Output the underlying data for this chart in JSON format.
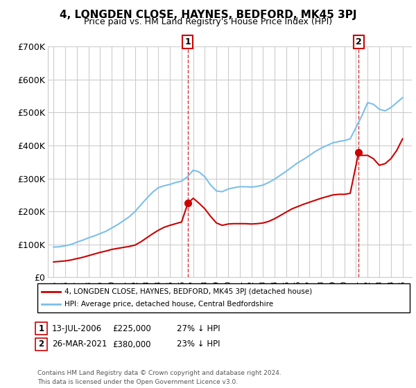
{
  "title": "4, LONGDEN CLOSE, HAYNES, BEDFORD, MK45 3PJ",
  "subtitle": "Price paid vs. HM Land Registry's House Price Index (HPI)",
  "ylim": [
    0,
    700000
  ],
  "yticks": [
    0,
    100000,
    200000,
    300000,
    400000,
    500000,
    600000,
    700000
  ],
  "ytick_labels": [
    "£0",
    "£100K",
    "£200K",
    "£300K",
    "£400K",
    "£500K",
    "£600K",
    "£700K"
  ],
  "hpi_color": "#7bbfea",
  "price_color": "#cc0000",
  "dashed_vline_color": "#cc0000",
  "grid_color": "#cccccc",
  "bg_color": "#ffffff",
  "legend_label_red": "4, LONGDEN CLOSE, HAYNES, BEDFORD, MK45 3PJ (detached house)",
  "legend_label_blue": "HPI: Average price, detached house, Central Bedfordshire",
  "transaction1_date": "13-JUL-2006",
  "transaction1_price": "£225,000",
  "transaction1_pct": "27% ↓ HPI",
  "transaction2_date": "26-MAR-2021",
  "transaction2_price": "£380,000",
  "transaction2_pct": "23% ↓ HPI",
  "footer": "Contains HM Land Registry data © Crown copyright and database right 2024.\nThis data is licensed under the Open Government Licence v3.0.",
  "hpi_years": [
    1995,
    1995.5,
    1996,
    1996.5,
    1997,
    1997.5,
    1998,
    1998.5,
    1999,
    1999.5,
    2000,
    2000.5,
    2001,
    2001.5,
    2002,
    2002.5,
    2003,
    2003.5,
    2004,
    2004.5,
    2005,
    2005.5,
    2006,
    2006.5,
    2007,
    2007.5,
    2008,
    2008.5,
    2009,
    2009.5,
    2010,
    2010.5,
    2011,
    2011.5,
    2012,
    2012.5,
    2013,
    2013.5,
    2014,
    2014.5,
    2015,
    2015.5,
    2016,
    2016.5,
    2017,
    2017.5,
    2018,
    2018.5,
    2019,
    2019.5,
    2020,
    2020.5,
    2021,
    2021.5,
    2022,
    2022.5,
    2023,
    2023.5,
    2024,
    2024.5,
    2025
  ],
  "hpi_values": [
    92000,
    93000,
    96000,
    100000,
    107000,
    113000,
    120000,
    126000,
    133000,
    140000,
    150000,
    160000,
    172000,
    184000,
    200000,
    220000,
    240000,
    258000,
    272000,
    278000,
    282000,
    288000,
    292000,
    305000,
    325000,
    320000,
    305000,
    280000,
    262000,
    260000,
    268000,
    272000,
    275000,
    275000,
    274000,
    276000,
    280000,
    288000,
    298000,
    310000,
    322000,
    335000,
    348000,
    358000,
    370000,
    382000,
    392000,
    400000,
    408000,
    412000,
    415000,
    420000,
    455000,
    490000,
    530000,
    525000,
    510000,
    505000,
    515000,
    530000,
    545000
  ],
  "price_years": [
    1995,
    1995.5,
    1996,
    1996.5,
    1997,
    1997.5,
    1998,
    1998.5,
    1999,
    1999.5,
    2000,
    2000.5,
    2001,
    2001.5,
    2002,
    2002.5,
    2003,
    2003.5,
    2004,
    2004.5,
    2005,
    2005.5,
    2006,
    2006.54,
    2007,
    2007.5,
    2008,
    2008.5,
    2009,
    2009.5,
    2010,
    2010.5,
    2011,
    2011.5,
    2012,
    2012.5,
    2013,
    2013.5,
    2014,
    2014.5,
    2015,
    2015.5,
    2016,
    2016.5,
    2017,
    2017.5,
    2018,
    2018.5,
    2019,
    2019.5,
    2020,
    2020.5,
    2021.23,
    2021.5,
    2022,
    2022.5,
    2023,
    2023.5,
    2024,
    2024.5,
    2025
  ],
  "price_values": [
    47000,
    48500,
    50000,
    53000,
    57000,
    61000,
    66000,
    71000,
    76000,
    80000,
    85000,
    88000,
    91000,
    94000,
    98000,
    108000,
    120000,
    132000,
    143000,
    152000,
    158000,
    163000,
    168000,
    225000,
    240000,
    225000,
    208000,
    185000,
    165000,
    158000,
    162000,
    163000,
    163000,
    163000,
    162000,
    163000,
    165000,
    170000,
    178000,
    188000,
    198000,
    208000,
    215000,
    222000,
    228000,
    234000,
    240000,
    245000,
    250000,
    252000,
    252000,
    255000,
    380000,
    370000,
    370000,
    360000,
    340000,
    345000,
    360000,
    385000,
    420000
  ],
  "marker1_x": 2006.54,
  "marker1_y": 225000,
  "marker2_x": 2021.23,
  "marker2_y": 380000,
  "vline1_x": 2006.54,
  "vline2_x": 2021.23,
  "xlim_left": 1994.5,
  "xlim_right": 2025.8,
  "xtick_years": [
    1995,
    1996,
    1997,
    1998,
    1999,
    2000,
    2001,
    2002,
    2003,
    2004,
    2005,
    2006,
    2007,
    2008,
    2009,
    2010,
    2011,
    2012,
    2013,
    2014,
    2015,
    2016,
    2017,
    2018,
    2019,
    2020,
    2021,
    2022,
    2023,
    2024,
    2025
  ]
}
